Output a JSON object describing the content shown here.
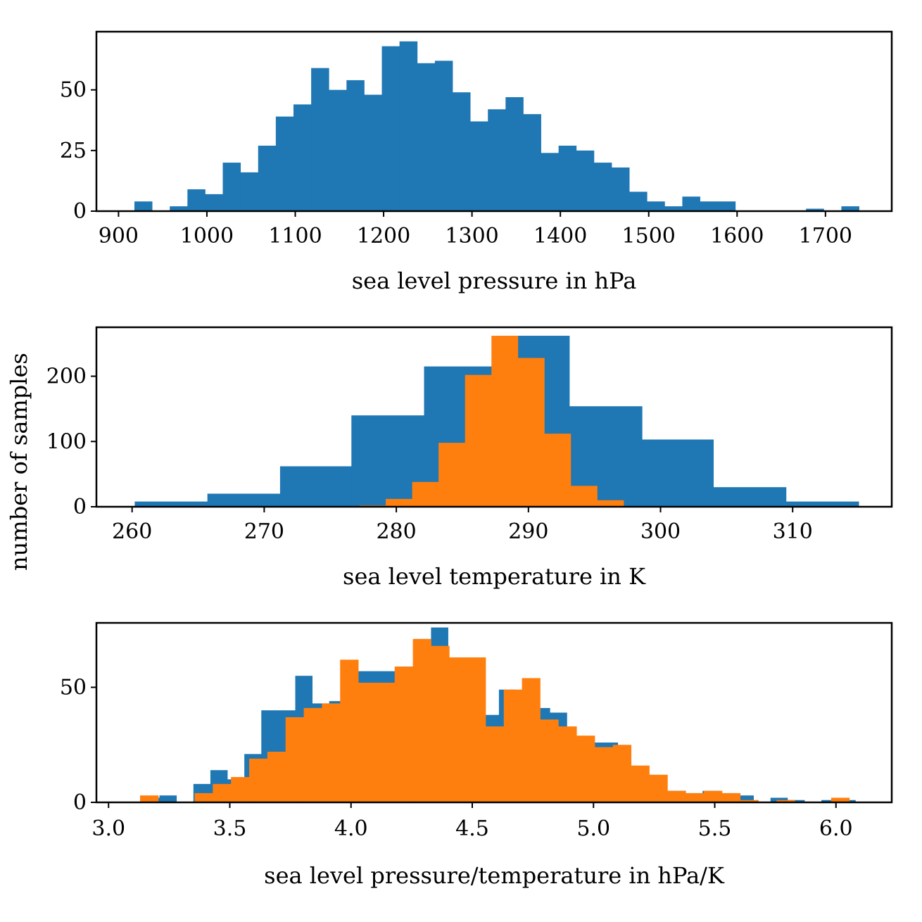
{
  "figure": {
    "ylabel": "number of samples"
  },
  "colors": {
    "blue": "#1f77b4",
    "orange": "#ff7f0e"
  },
  "chart_data": [
    {
      "type": "bar",
      "histogram": true,
      "xlabel": "sea level pressure in hPa",
      "xlim": [
        875,
        1775
      ],
      "ylim": [
        0,
        74
      ],
      "xticks": [
        900,
        1000,
        1100,
        1200,
        1300,
        1400,
        1500,
        1600,
        1700
      ],
      "yticks": [
        0,
        25,
        50
      ],
      "grid": false,
      "series": [
        {
          "color": "#1f77b4",
          "bin_edges": [
            918,
            938,
            958,
            978,
            998,
            1018,
            1038,
            1058,
            1078,
            1098,
            1118,
            1138,
            1158,
            1178,
            1198,
            1218,
            1238,
            1258,
            1278,
            1298,
            1318,
            1338,
            1358,
            1378,
            1398,
            1418,
            1438,
            1458,
            1478,
            1498,
            1518,
            1538,
            1558,
            1578,
            1598,
            1618,
            1638,
            1658,
            1678,
            1698,
            1718,
            1738
          ],
          "counts": [
            4,
            0,
            2,
            9,
            7,
            20,
            16,
            27,
            39,
            44,
            59,
            50,
            54,
            48,
            68,
            70,
            61,
            62,
            49,
            37,
            42,
            47,
            40,
            24,
            27,
            25,
            20,
            18,
            8,
            4,
            2,
            6,
            4,
            4,
            0,
            0,
            0,
            0,
            1,
            0,
            2
          ]
        }
      ]
    },
    {
      "type": "bar",
      "histogram": true,
      "xlabel": "sea level temperature in K",
      "xlim": [
        257.3,
        317.5
      ],
      "ylim": [
        0,
        275
      ],
      "xticks": [
        260,
        270,
        280,
        290,
        300,
        310
      ],
      "yticks": [
        0,
        100,
        200
      ],
      "grid": false,
      "series": [
        {
          "color": "#1f77b4",
          "bin_edges": [
            260.2,
            265.7,
            271.2,
            276.6,
            282.1,
            287.6,
            293.1,
            298.6,
            304.0,
            309.5,
            315.0
          ],
          "counts": [
            8,
            20,
            62,
            140,
            215,
            262,
            154,
            103,
            30,
            8
          ]
        },
        {
          "color": "#ff7f0e",
          "bin_edges": [
            277.2,
            279.2,
            281.2,
            283.2,
            285.2,
            287.2,
            289.2,
            291.2,
            293.2,
            295.2,
            297.2
          ],
          "counts": [
            2,
            12,
            38,
            98,
            202,
            262,
            228,
            112,
            32,
            10
          ]
        }
      ]
    },
    {
      "type": "bar",
      "histogram": true,
      "xlabel": "sea level pressure/temperature in hPa/K",
      "xlim": [
        2.95,
        6.23
      ],
      "ylim": [
        0,
        78
      ],
      "xticks": [
        3.0,
        3.5,
        4.0,
        4.5,
        5.0,
        5.5,
        6.0
      ],
      "xticklabels": [
        "3.0",
        "3.5",
        "4.0",
        "4.5",
        "5.0",
        "5.5",
        "6.0"
      ],
      "yticks": [
        0,
        50
      ],
      "grid": false,
      "series": [
        {
          "color": "#1f77b4",
          "bin_edges": [
            3.14,
            3.21,
            3.28,
            3.35,
            3.42,
            3.49,
            3.56,
            3.63,
            3.7,
            3.77,
            3.84,
            3.91,
            3.98,
            4.05,
            4.12,
            4.19,
            4.26,
            4.33,
            4.4,
            4.47,
            4.54,
            4.61,
            4.68,
            4.75,
            4.82,
            4.89,
            4.96,
            5.03,
            5.1,
            5.17,
            5.24,
            5.31,
            5.38,
            5.45,
            5.52,
            5.59,
            5.66,
            5.73,
            5.8,
            5.87,
            5.94,
            6.01,
            6.08
          ],
          "counts": [
            2,
            3,
            0,
            8,
            14,
            10,
            21,
            40,
            40,
            55,
            43,
            44,
            57,
            57,
            57,
            59,
            71,
            76,
            62,
            58,
            38,
            49,
            45,
            41,
            39,
            28,
            26,
            26,
            12,
            12,
            5,
            5,
            4,
            5,
            4,
            3,
            0,
            2,
            1,
            0,
            1,
            1
          ]
        },
        {
          "color": "#ff7f0e",
          "bin_edges": [
            3.13,
            3.205,
            3.28,
            3.355,
            3.43,
            3.505,
            3.58,
            3.655,
            3.73,
            3.805,
            3.88,
            3.955,
            4.03,
            4.105,
            4.18,
            4.255,
            4.33,
            4.405,
            4.48,
            4.555,
            4.63,
            4.705,
            4.78,
            4.855,
            4.93,
            5.005,
            5.08,
            5.155,
            5.23,
            5.305,
            5.38,
            5.455,
            5.53,
            5.605,
            5.68,
            5.755,
            5.83,
            5.905,
            5.98,
            6.055
          ],
          "counts": [
            3,
            0,
            0,
            4,
            8,
            11,
            19,
            22,
            37,
            41,
            43,
            62,
            52,
            52,
            59,
            71,
            68,
            63,
            63,
            33,
            49,
            54,
            36,
            33,
            29,
            24,
            25,
            16,
            12,
            5,
            4,
            5,
            4,
            1,
            0,
            1,
            0,
            0,
            2,
            0
          ]
        }
      ]
    }
  ]
}
